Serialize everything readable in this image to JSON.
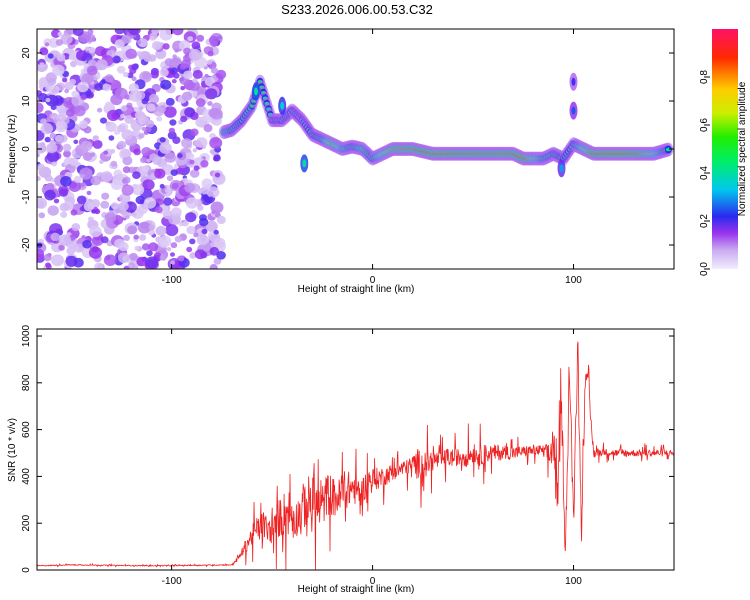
{
  "title": "S233.2026.006.00.53.C32",
  "colors": {
    "snr_line": "#ee2222",
    "axis": "#000000",
    "background": "#ffffff"
  },
  "chart_data": [
    {
      "type": "heatmap",
      "xlabel": "Height of straight line (km)",
      "ylabel": "Frequency (Hz)",
      "xlim": [
        -167,
        150
      ],
      "ylim": [
        -25,
        25
      ],
      "xticks": [
        -100,
        0,
        100
      ],
      "xtick_labels": [
        "-100",
        "0",
        "100"
      ],
      "yticks": [
        -20,
        -10,
        0,
        10,
        20
      ],
      "ytick_labels": [
        "-20",
        "-10",
        "0",
        "10",
        "20"
      ],
      "noise_region_x": [
        -167,
        -75
      ],
      "signal_trace": [
        {
          "x": -74,
          "y": 3.5,
          "amp": 0.6
        },
        {
          "x": -70,
          "y": 4,
          "amp": 0.5
        },
        {
          "x": -65,
          "y": 6,
          "amp": 0.45
        },
        {
          "x": -60,
          "y": 9,
          "amp": 0.5
        },
        {
          "x": -56,
          "y": 14,
          "amp": 0.45
        },
        {
          "x": -50,
          "y": 6,
          "amp": 0.4
        },
        {
          "x": -45,
          "y": 6,
          "amp": 0.4
        },
        {
          "x": -40,
          "y": 8,
          "amp": 0.4
        },
        {
          "x": -35,
          "y": 6,
          "amp": 0.35
        },
        {
          "x": -30,
          "y": 3,
          "amp": 0.45
        },
        {
          "x": -25,
          "y": 2,
          "amp": 0.5
        },
        {
          "x": -20,
          "y": 1,
          "amp": 0.8
        },
        {
          "x": -15,
          "y": 0,
          "amp": 0.6
        },
        {
          "x": -10,
          "y": 0.5,
          "amp": 0.5
        },
        {
          "x": -5,
          "y": 0,
          "amp": 0.6
        },
        {
          "x": 0,
          "y": -2,
          "amp": 0.5
        },
        {
          "x": 5,
          "y": -1,
          "amp": 0.7
        },
        {
          "x": 10,
          "y": 0,
          "amp": 0.8
        },
        {
          "x": 20,
          "y": 0,
          "amp": 0.85
        },
        {
          "x": 30,
          "y": -1,
          "amp": 0.9
        },
        {
          "x": 40,
          "y": -1,
          "amp": 0.9
        },
        {
          "x": 50,
          "y": -1,
          "amp": 0.85
        },
        {
          "x": 60,
          "y": -1,
          "amp": 0.85
        },
        {
          "x": 70,
          "y": -1,
          "amp": 0.85
        },
        {
          "x": 75,
          "y": -2,
          "amp": 0.95
        },
        {
          "x": 80,
          "y": -2,
          "amp": 0.7
        },
        {
          "x": 85,
          "y": -2,
          "amp": 0.55
        },
        {
          "x": 90,
          "y": -1,
          "amp": 0.5
        },
        {
          "x": 95,
          "y": -2,
          "amp": 0.45
        },
        {
          "x": 100,
          "y": 1,
          "amp": 0.45
        },
        {
          "x": 110,
          "y": -1,
          "amp": 0.9
        },
        {
          "x": 120,
          "y": -1,
          "amp": 0.95
        },
        {
          "x": 130,
          "y": -1,
          "amp": 0.9
        },
        {
          "x": 140,
          "y": -1,
          "amp": 0.7
        },
        {
          "x": 148,
          "y": 0,
          "amp": 0.4
        }
      ],
      "side_features": [
        {
          "x": -34,
          "y": -3,
          "amp": 0.4
        },
        {
          "x": -45,
          "y": 9,
          "amp": 0.35
        },
        {
          "x": -58,
          "y": 12,
          "amp": 0.4
        },
        {
          "x": 100,
          "y": 8,
          "amp": 0.25
        },
        {
          "x": 100,
          "y": 14,
          "amp": 0.2
        },
        {
          "x": 94,
          "y": -4,
          "amp": 0.3
        }
      ],
      "colorbar": {
        "label": "Normalized spectral amplitude",
        "range": [
          0.0,
          1.0
        ],
        "ticks": [
          0.0,
          0.2,
          0.4,
          0.6,
          0.8
        ],
        "tick_labels": [
          "0.0",
          "0.2",
          "0.4",
          "0.6",
          "0.8"
        ]
      }
    },
    {
      "type": "line",
      "xlabel": "Height of straight line (km)",
      "ylabel": "SNR (10 * v/v)",
      "xlim": [
        -167,
        150
      ],
      "ylim": [
        0,
        1030
      ],
      "xticks": [
        -100,
        0,
        100
      ],
      "xtick_labels": [
        "-100",
        "0",
        "100"
      ],
      "yticks": [
        0,
        200,
        400,
        600,
        800,
        1000
      ],
      "ytick_labels": [
        "0",
        "200",
        "400",
        "600",
        "800",
        "1000"
      ],
      "series": [
        {
          "name": "SNR",
          "x": [
            -167,
            -150,
            -130,
            -110,
            -90,
            -70,
            -66,
            -62,
            -58,
            -54,
            -50,
            -46,
            -42,
            -38,
            -34,
            -30,
            -26,
            -22,
            -18,
            -14,
            -10,
            -6,
            -2,
            2,
            6,
            10,
            14,
            18,
            22,
            26,
            30,
            34,
            38,
            42,
            46,
            50,
            54,
            58,
            62,
            66,
            70,
            74,
            78,
            82,
            86,
            88,
            90,
            92,
            94,
            96,
            98,
            100,
            102,
            104,
            106,
            110,
            115,
            120,
            130,
            140,
            150
          ],
          "values": [
            18,
            22,
            20,
            18,
            20,
            22,
            60,
            120,
            170,
            190,
            160,
            230,
            250,
            220,
            280,
            300,
            260,
            330,
            300,
            340,
            350,
            330,
            380,
            390,
            400,
            420,
            430,
            440,
            455,
            450,
            470,
            470,
            480,
            480,
            490,
            495,
            490,
            500,
            500,
            505,
            500,
            505,
            510,
            510,
            510,
            480,
            560,
            300,
            700,
            100,
            850,
            200,
            1000,
            150,
            900,
            500,
            505,
            500,
            500,
            500,
            500
          ],
          "spike_amplitude": [
            3,
            3,
            3,
            3,
            3,
            3,
            20,
            60,
            90,
            110,
            70,
            150,
            180,
            130,
            170,
            210,
            150,
            160,
            130,
            140,
            120,
            90,
            100,
            80,
            70,
            60,
            55,
            60,
            110,
            100,
            80,
            60,
            70,
            60,
            90,
            60,
            80,
            60,
            60,
            50,
            50,
            40,
            40,
            40,
            40,
            120,
            150,
            120,
            150,
            100,
            150,
            100,
            100,
            100,
            100,
            40,
            25,
            25,
            25,
            25,
            25
          ]
        }
      ]
    }
  ]
}
